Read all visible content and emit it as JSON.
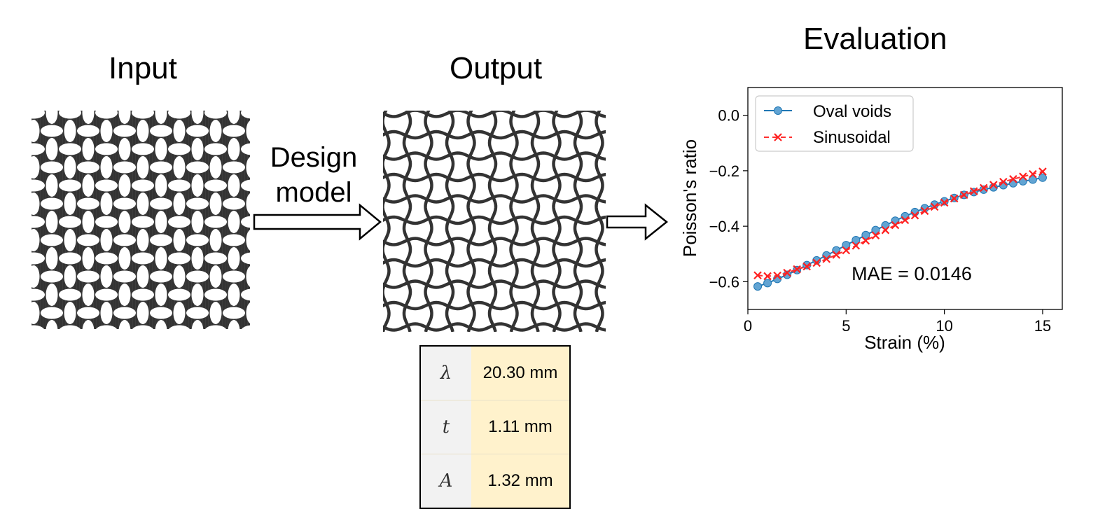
{
  "titles": {
    "input": "Input",
    "output": "Output",
    "evaluation": "Evaluation"
  },
  "design_model": {
    "line1": "Design",
    "line2": "model"
  },
  "colors": {
    "solid": "#333333",
    "table_symbol_bg": "#f2f2f2",
    "table_value_bg": "#fff2cc",
    "series_oval": "#1f77b4",
    "series_sinusoidal": "#ff0000"
  },
  "parameters": [
    {
      "symbol": "λ",
      "value": "20.30 mm"
    },
    {
      "symbol": "t",
      "value": "1.11 mm"
    },
    {
      "symbol": "A",
      "value": "1.32 mm"
    }
  ],
  "chart_data": {
    "type": "line",
    "title": "",
    "xlabel": "Strain (%)",
    "ylabel": "Poisson's ratio",
    "xlim": [
      0,
      16
    ],
    "ylim": [
      -0.7,
      0.1
    ],
    "xticks": [
      0,
      5,
      10,
      15
    ],
    "yticks": [
      -0.6,
      -0.4,
      -0.2,
      0.0
    ],
    "xtick_labels": [
      "0",
      "5",
      "10",
      "15"
    ],
    "ytick_labels": [
      "−0.6",
      "−0.4",
      "−0.2",
      "0.0"
    ],
    "legend_position": "top-left",
    "annotation": "MAE = 0.0146",
    "series": [
      {
        "name": "Oval voids",
        "style": "solid-circle",
        "x": [
          0.5,
          1,
          1.5,
          2,
          2.5,
          3,
          3.5,
          4,
          4.5,
          5,
          5.5,
          6,
          6.5,
          7,
          7.5,
          8,
          8.5,
          9,
          9.5,
          10,
          10.5,
          11,
          11.5,
          12,
          12.5,
          13,
          13.5,
          14,
          14.5,
          15
        ],
        "values": [
          -0.617,
          -0.605,
          -0.59,
          -0.575,
          -0.558,
          -0.54,
          -0.523,
          -0.505,
          -0.487,
          -0.468,
          -0.45,
          -0.432,
          -0.414,
          -0.397,
          -0.38,
          -0.364,
          -0.349,
          -0.335,
          -0.322,
          -0.31,
          -0.298,
          -0.287,
          -0.277,
          -0.268,
          -0.26,
          -0.252,
          -0.245,
          -0.238,
          -0.232,
          -0.225
        ]
      },
      {
        "name": "Sinusoidal",
        "style": "dashed-x",
        "x": [
          0.5,
          1,
          1.5,
          2,
          2.5,
          3,
          3.5,
          4,
          4.5,
          5,
          5.5,
          6,
          6.5,
          7,
          7.5,
          8,
          8.5,
          9,
          9.5,
          10,
          10.5,
          11,
          11.5,
          12,
          12.5,
          13,
          13.5,
          14,
          14.5,
          15
        ],
        "values": [
          -0.577,
          -0.58,
          -0.578,
          -0.568,
          -0.555,
          -0.545,
          -0.532,
          -0.518,
          -0.503,
          -0.487,
          -0.47,
          -0.452,
          -0.433,
          -0.414,
          -0.396,
          -0.378,
          -0.361,
          -0.345,
          -0.33,
          -0.315,
          -0.3,
          -0.287,
          -0.274,
          -0.262,
          -0.251,
          -0.24,
          -0.23,
          -0.221,
          -0.212,
          -0.203
        ]
      }
    ]
  }
}
